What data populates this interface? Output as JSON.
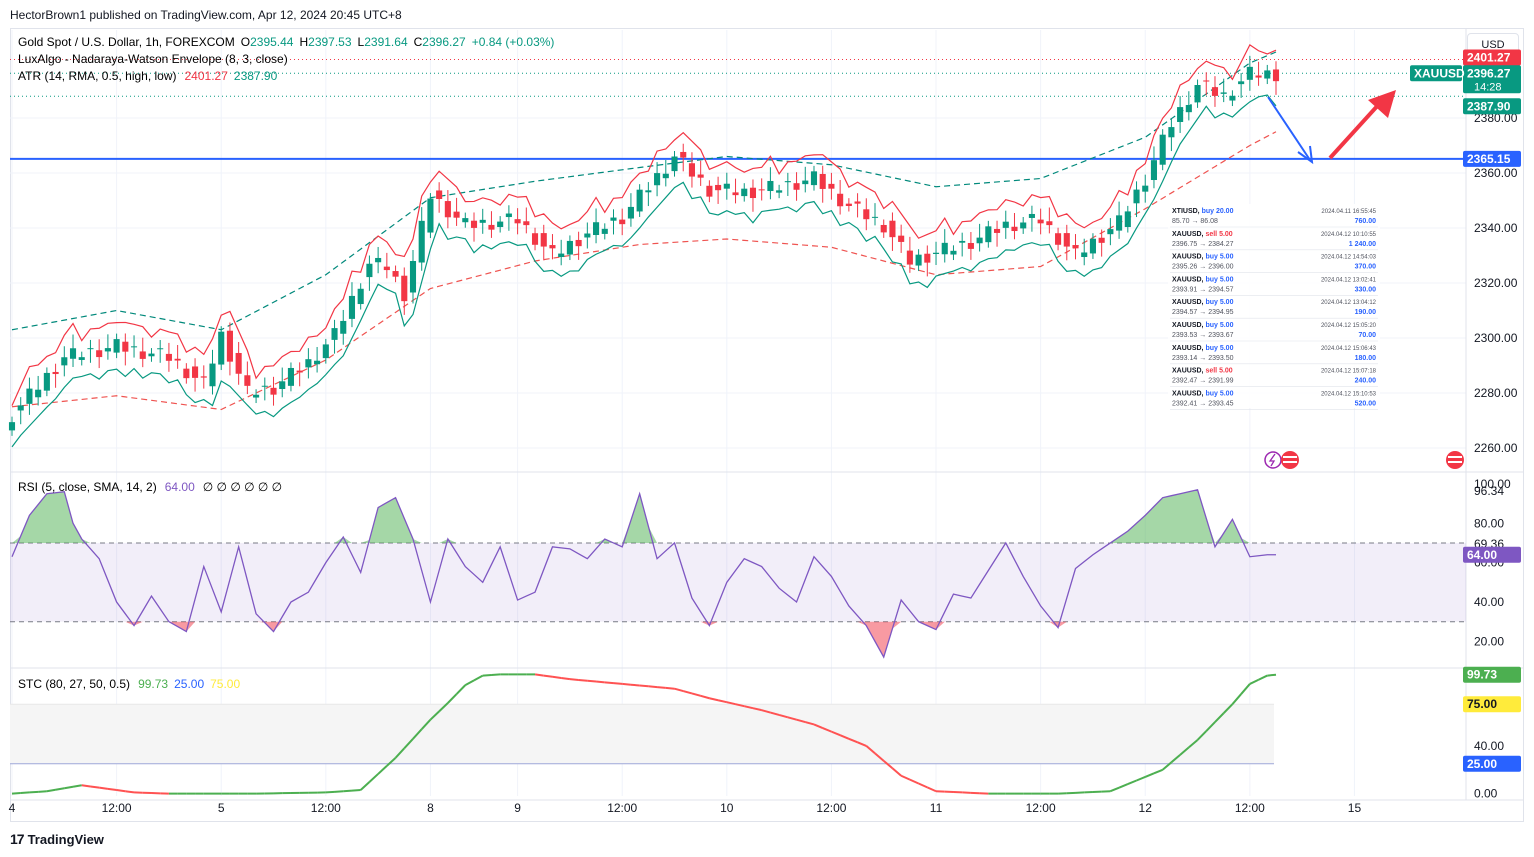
{
  "header": {
    "publisher": "HectorBrown1 published on TradingView.com, Apr 12, 2024 20:45 UTC+8"
  },
  "currency_button": "USD",
  "footer": {
    "brand": "TradingView",
    "logo_mark": "17"
  },
  "legend": {
    "symbol": "Gold Spot / U.S. Dollar, 1h, FOREXCOM",
    "o_label": "O",
    "o": "2395.44",
    "h_label": "H",
    "h": "2397.53",
    "l_label": "L",
    "l": "2391.64",
    "c_label": "C",
    "c": "2396.27",
    "change": "+0.84 (+0.03%)",
    "nw": "LuxAlgo - Nadaraya-Watson Envelope (8, 3, close)",
    "atr": "ATR (14, RMA, 0.5, high, low)",
    "atr_high": "2401.27",
    "atr_low": "2387.90"
  },
  "rsi_legend": {
    "name": "RSI (5, close, SMA, 14, 2)",
    "value": "64.00",
    "tail": "∅ ∅ ∅ ∅ ∅ ∅"
  },
  "stc_legend": {
    "name": "STC (80, 27, 50, 0.5)",
    "v1": "99.73",
    "v2": "25.00",
    "v3": "75.00"
  },
  "price_badges": {
    "atr_high": "2401.27",
    "last": "2396.27",
    "countdown": "14:28",
    "atr_low": "2387.90",
    "level": "2365.15",
    "symbol": "XAUUSD"
  },
  "rsi_badges": {
    "a": "69.36",
    "b": "64.00"
  },
  "stc_badges": {
    "a": "99.73",
    "b": "75.00",
    "c": "25.00"
  },
  "colors": {
    "up": "#089981",
    "down": "#f23645",
    "env_upper": "#089981",
    "env_lower": "#f23645",
    "level": "#2962ff",
    "rsi": "#7e57c2",
    "stc_up": "#4caf50",
    "stc_down": "#ff5252"
  },
  "trades": [
    {
      "sym": "XTIUSD",
      "side": "buy",
      "size": "20.00",
      "prices": "85.70 → 86.08",
      "time": "2024.04.11 16:55:45",
      "profit": "760.00"
    },
    {
      "sym": "XAUUSD",
      "side": "sell",
      "size": "5.00",
      "prices": "2396.75 → 2384.27",
      "time": "2024.04.12 10:10:55",
      "profit": "1 240.00"
    },
    {
      "sym": "XAUUSD",
      "side": "buy",
      "size": "5.00",
      "prices": "2395.26 → 2396.00",
      "time": "2024.04.12 14:54:03",
      "profit": "370.00"
    },
    {
      "sym": "XAUUSD",
      "side": "buy",
      "size": "5.00",
      "prices": "2393.91 → 2394.57",
      "time": "2024.04.12 13:02:41",
      "profit": "330.00"
    },
    {
      "sym": "XAUUSD",
      "side": "buy",
      "size": "5.00",
      "prices": "2394.57 → 2394.95",
      "time": "2024.04.12 13:04:12",
      "profit": "190.00"
    },
    {
      "sym": "XAUUSD",
      "side": "buy",
      "size": "5.00",
      "prices": "2393.53 → 2393.67",
      "time": "2024.04.12 15:05:20",
      "profit": "70.00"
    },
    {
      "sym": "XAUUSD",
      "side": "buy",
      "size": "5.00",
      "prices": "2393.14 → 2393.50",
      "time": "2024.04.12 15:06:43",
      "profit": "180.00"
    },
    {
      "sym": "XAUUSD",
      "side": "sell",
      "size": "5.00",
      "prices": "2392.47 → 2391.99",
      "time": "2024.04.12 15:07:18",
      "profit": "240.00"
    },
    {
      "sym": "XAUUSD",
      "side": "buy",
      "size": "5.00",
      "prices": "2392.41 → 2393.45",
      "time": "2024.04.12 15:10:53",
      "profit": "520.00"
    }
  ],
  "chart_data": [
    {
      "type": "candlestick",
      "title": "Gold Spot / U.S. Dollar, 1h, FOREXCOM",
      "ylim": [
        2252,
        2412
      ],
      "y_ticks": [
        "2380.00",
        "2360.00",
        "2340.00",
        "2320.00",
        "2300.00",
        "2280.00",
        "2260.00"
      ],
      "y_tick_values": [
        2380,
        2360,
        2340,
        2320,
        2300,
        2280,
        2260
      ],
      "x_ticks": [
        "4",
        "12:00",
        "5",
        "12:00",
        "8",
        "9",
        "12:00",
        "10",
        "12:00",
        "11",
        "12:00",
        "12",
        "12:00",
        "15"
      ],
      "x_tick_index": [
        0,
        12,
        24,
        36,
        48,
        58,
        70,
        82,
        94,
        106,
        118,
        130,
        142,
        154
      ],
      "bars": 146,
      "horizontal_level": 2365.15,
      "last_close": 2396.27,
      "atr_band": [
        2387.9,
        2401.27
      ],
      "close_anchors": [
        [
          0,
          2272
        ],
        [
          6,
          2293
        ],
        [
          12,
          2297
        ],
        [
          18,
          2293
        ],
        [
          22,
          2283
        ],
        [
          24,
          2301
        ],
        [
          27,
          2280
        ],
        [
          30,
          2282
        ],
        [
          34,
          2291
        ],
        [
          37,
          2301
        ],
        [
          41,
          2327
        ],
        [
          43,
          2326
        ],
        [
          45,
          2316
        ],
        [
          48,
          2352
        ],
        [
          52,
          2341
        ],
        [
          58,
          2343
        ],
        [
          62,
          2330
        ],
        [
          66,
          2338
        ],
        [
          70,
          2344
        ],
        [
          76,
          2366
        ],
        [
          80,
          2354
        ],
        [
          84,
          2353
        ],
        [
          88,
          2355
        ],
        [
          92,
          2358
        ],
        [
          96,
          2348
        ],
        [
          100,
          2341
        ],
        [
          103,
          2328
        ],
        [
          106,
          2331
        ],
        [
          110,
          2335
        ],
        [
          114,
          2341
        ],
        [
          118,
          2343
        ],
        [
          122,
          2330
        ],
        [
          127,
          2342
        ],
        [
          130,
          2358
        ],
        [
          133,
          2378
        ],
        [
          136,
          2392
        ],
        [
          139,
          2388
        ],
        [
          142,
          2396
        ],
        [
          145,
          2396
        ]
      ],
      "upper_env_dashed": [
        [
          0,
          2303
        ],
        [
          12,
          2310
        ],
        [
          24,
          2303
        ],
        [
          36,
          2323
        ],
        [
          48,
          2351
        ],
        [
          60,
          2357
        ],
        [
          72,
          2362
        ],
        [
          82,
          2366
        ],
        [
          94,
          2363
        ],
        [
          106,
          2355
        ],
        [
          118,
          2358
        ],
        [
          130,
          2373
        ],
        [
          142,
          2400
        ],
        [
          145,
          2404
        ]
      ],
      "lower_env_dashed": [
        [
          0,
          2275
        ],
        [
          12,
          2279
        ],
        [
          24,
          2274
        ],
        [
          36,
          2292
        ],
        [
          48,
          2318
        ],
        [
          60,
          2328
        ],
        [
          72,
          2334
        ],
        [
          82,
          2336
        ],
        [
          94,
          2333
        ],
        [
          106,
          2323
        ],
        [
          118,
          2326
        ],
        [
          130,
          2347
        ],
        [
          142,
          2370
        ],
        [
          145,
          2375
        ]
      ]
    },
    {
      "type": "line",
      "title": "RSI (5, close, SMA, 14, 2)",
      "ylim": [
        8,
        104
      ],
      "y_ticks": [
        "100.00",
        "96.34",
        "80.00",
        "60.00",
        "40.00",
        "20.00"
      ],
      "y_tick_values": [
        100,
        96.34,
        80,
        60,
        40,
        20
      ],
      "bands": [
        30,
        70
      ],
      "anchors": [
        [
          0,
          63
        ],
        [
          2,
          84
        ],
        [
          4,
          95
        ],
        [
          6,
          96
        ],
        [
          7,
          80
        ],
        [
          8,
          72
        ],
        [
          10,
          62
        ],
        [
          12,
          40
        ],
        [
          14,
          28
        ],
        [
          16,
          43
        ],
        [
          18,
          30
        ],
        [
          20,
          25
        ],
        [
          22,
          58
        ],
        [
          24,
          35
        ],
        [
          26,
          68
        ],
        [
          28,
          34
        ],
        [
          30,
          25
        ],
        [
          32,
          40
        ],
        [
          34,
          45
        ],
        [
          36,
          60
        ],
        [
          38,
          73
        ],
        [
          40,
          55
        ],
        [
          42,
          88
        ],
        [
          44,
          93
        ],
        [
          46,
          72
        ],
        [
          48,
          40
        ],
        [
          50,
          72
        ],
        [
          52,
          58
        ],
        [
          54,
          50
        ],
        [
          56,
          68
        ],
        [
          58,
          41
        ],
        [
          60,
          45
        ],
        [
          62,
          68
        ],
        [
          64,
          67
        ],
        [
          66,
          62
        ],
        [
          68,
          72
        ],
        [
          70,
          68
        ],
        [
          72,
          95
        ],
        [
          74,
          62
        ],
        [
          76,
          70
        ],
        [
          78,
          42
        ],
        [
          80,
          28
        ],
        [
          82,
          50
        ],
        [
          84,
          62
        ],
        [
          86,
          58
        ],
        [
          88,
          47
        ],
        [
          90,
          40
        ],
        [
          92,
          63
        ],
        [
          94,
          53
        ],
        [
          96,
          38
        ],
        [
          98,
          28
        ],
        [
          100,
          12
        ],
        [
          102,
          41
        ],
        [
          104,
          30
        ],
        [
          106,
          26
        ],
        [
          108,
          44
        ],
        [
          110,
          42
        ],
        [
          112,
          56
        ],
        [
          114,
          70
        ],
        [
          116,
          53
        ],
        [
          118,
          38
        ],
        [
          120,
          27
        ],
        [
          122,
          57
        ],
        [
          124,
          64
        ],
        [
          126,
          70
        ],
        [
          128,
          76
        ],
        [
          130,
          84
        ],
        [
          132,
          93
        ],
        [
          134,
          95
        ],
        [
          136,
          97
        ],
        [
          138,
          68
        ],
        [
          140,
          82
        ],
        [
          142,
          63
        ],
        [
          144,
          64
        ],
        [
          145,
          64
        ]
      ]
    },
    {
      "type": "line",
      "title": "STC (80, 27, 50, 0.5)",
      "ylim": [
        -2,
        102
      ],
      "y_ticks": [
        "99.73",
        "75.00",
        "40.00",
        "25.00",
        "0.00"
      ],
      "y_tick_values": [
        99.73,
        75,
        40,
        25,
        0
      ],
      "bands": [
        25,
        75
      ],
      "anchors": [
        [
          0,
          0
        ],
        [
          4,
          2
        ],
        [
          8,
          7
        ],
        [
          10,
          5
        ],
        [
          14,
          1
        ],
        [
          18,
          0
        ],
        [
          28,
          0
        ],
        [
          36,
          1
        ],
        [
          40,
          3
        ],
        [
          44,
          30
        ],
        [
          48,
          62
        ],
        [
          50,
          76
        ],
        [
          52,
          91
        ],
        [
          54,
          99
        ],
        [
          56,
          100
        ],
        [
          60,
          100
        ],
        [
          64,
          96
        ],
        [
          70,
          92
        ],
        [
          76,
          88
        ],
        [
          80,
          80
        ],
        [
          86,
          70
        ],
        [
          92,
          58
        ],
        [
          98,
          40
        ],
        [
          102,
          15
        ],
        [
          106,
          2
        ],
        [
          112,
          0
        ],
        [
          120,
          0
        ],
        [
          126,
          2
        ],
        [
          132,
          20
        ],
        [
          136,
          45
        ],
        [
          140,
          75
        ],
        [
          142,
          92
        ],
        [
          144,
          99
        ],
        [
          145,
          99.73
        ]
      ]
    }
  ]
}
